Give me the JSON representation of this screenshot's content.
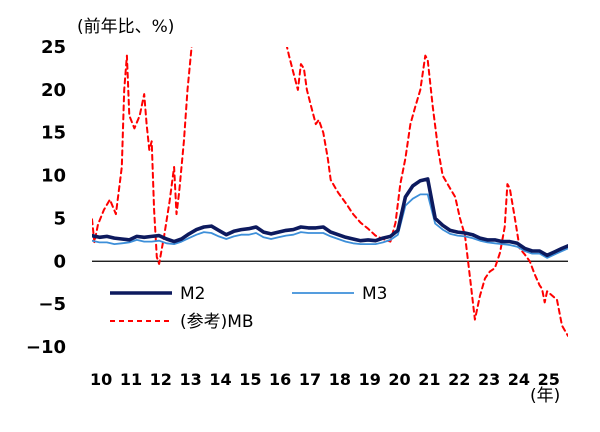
{
  "chart_data": {
    "type": "line",
    "y_unit_label": "(前年比、%)",
    "x_unit_label": "(年)",
    "ylim": [
      -10,
      25
    ],
    "y_ticks": [
      25,
      20,
      15,
      10,
      5,
      0,
      -5,
      -10
    ],
    "xlim": [
      2010.0,
      2025.95
    ],
    "x_tick_labels": [
      "10",
      "11",
      "12",
      "13",
      "14",
      "15",
      "16",
      "17",
      "18",
      "19",
      "20",
      "21",
      "22",
      "23",
      "24",
      "25"
    ],
    "grid": false,
    "legend_position": "bottom-left",
    "series": [
      {
        "name": "M2",
        "legend_label": "M2",
        "color": "#0d1a5e",
        "style": "solid",
        "width": 3.6,
        "points": [
          [
            2010.0,
            3.0
          ],
          [
            2010.25,
            2.8
          ],
          [
            2010.5,
            2.9
          ],
          [
            2010.75,
            2.7
          ],
          [
            2011.0,
            2.6
          ],
          [
            2011.25,
            2.5
          ],
          [
            2011.5,
            2.9
          ],
          [
            2011.75,
            2.8
          ],
          [
            2012.0,
            2.9
          ],
          [
            2012.25,
            3.0
          ],
          [
            2012.5,
            2.6
          ],
          [
            2012.75,
            2.3
          ],
          [
            2013.0,
            2.6
          ],
          [
            2013.25,
            3.2
          ],
          [
            2013.5,
            3.7
          ],
          [
            2013.75,
            4.0
          ],
          [
            2014.0,
            4.1
          ],
          [
            2014.25,
            3.6
          ],
          [
            2014.5,
            3.1
          ],
          [
            2014.75,
            3.5
          ],
          [
            2015.0,
            3.7
          ],
          [
            2015.25,
            3.8
          ],
          [
            2015.5,
            4.0
          ],
          [
            2015.75,
            3.4
          ],
          [
            2016.0,
            3.2
          ],
          [
            2016.25,
            3.4
          ],
          [
            2016.5,
            3.6
          ],
          [
            2016.75,
            3.7
          ],
          [
            2017.0,
            4.0
          ],
          [
            2017.25,
            3.9
          ],
          [
            2017.5,
            3.9
          ],
          [
            2017.75,
            4.0
          ],
          [
            2018.0,
            3.4
          ],
          [
            2018.25,
            3.1
          ],
          [
            2018.5,
            2.8
          ],
          [
            2018.75,
            2.6
          ],
          [
            2019.0,
            2.4
          ],
          [
            2019.25,
            2.5
          ],
          [
            2019.5,
            2.4
          ],
          [
            2019.75,
            2.7
          ],
          [
            2020.0,
            2.9
          ],
          [
            2020.25,
            3.6
          ],
          [
            2020.5,
            7.5
          ],
          [
            2020.75,
            8.8
          ],
          [
            2021.0,
            9.4
          ],
          [
            2021.25,
            9.6
          ],
          [
            2021.5,
            5.0
          ],
          [
            2021.75,
            4.2
          ],
          [
            2022.0,
            3.6
          ],
          [
            2022.25,
            3.4
          ],
          [
            2022.5,
            3.3
          ],
          [
            2022.75,
            3.1
          ],
          [
            2023.0,
            2.7
          ],
          [
            2023.25,
            2.5
          ],
          [
            2023.5,
            2.5
          ],
          [
            2023.75,
            2.3
          ],
          [
            2024.0,
            2.3
          ],
          [
            2024.25,
            2.1
          ],
          [
            2024.5,
            1.5
          ],
          [
            2024.75,
            1.2
          ],
          [
            2025.0,
            1.2
          ],
          [
            2025.25,
            0.7
          ],
          [
            2025.5,
            1.1
          ],
          [
            2025.75,
            1.5
          ],
          [
            2025.95,
            1.8
          ]
        ]
      },
      {
        "name": "M3",
        "legend_label": "M3",
        "color": "#3d8fd9",
        "style": "solid",
        "width": 1.8,
        "points": [
          [
            2010.0,
            2.4
          ],
          [
            2010.25,
            2.2
          ],
          [
            2010.5,
            2.2
          ],
          [
            2010.75,
            2.0
          ],
          [
            2011.0,
            2.1
          ],
          [
            2011.25,
            2.2
          ],
          [
            2011.5,
            2.5
          ],
          [
            2011.75,
            2.3
          ],
          [
            2012.0,
            2.3
          ],
          [
            2012.25,
            2.4
          ],
          [
            2012.5,
            2.1
          ],
          [
            2012.75,
            2.0
          ],
          [
            2013.0,
            2.3
          ],
          [
            2013.25,
            2.7
          ],
          [
            2013.5,
            3.1
          ],
          [
            2013.75,
            3.4
          ],
          [
            2014.0,
            3.3
          ],
          [
            2014.25,
            2.9
          ],
          [
            2014.5,
            2.6
          ],
          [
            2014.75,
            2.9
          ],
          [
            2015.0,
            3.1
          ],
          [
            2015.25,
            3.1
          ],
          [
            2015.5,
            3.3
          ],
          [
            2015.75,
            2.8
          ],
          [
            2016.0,
            2.6
          ],
          [
            2016.25,
            2.8
          ],
          [
            2016.5,
            3.0
          ],
          [
            2016.75,
            3.1
          ],
          [
            2017.0,
            3.4
          ],
          [
            2017.25,
            3.3
          ],
          [
            2017.5,
            3.3
          ],
          [
            2017.75,
            3.3
          ],
          [
            2018.0,
            2.9
          ],
          [
            2018.25,
            2.6
          ],
          [
            2018.5,
            2.3
          ],
          [
            2018.75,
            2.1
          ],
          [
            2019.0,
            2.0
          ],
          [
            2019.25,
            2.0
          ],
          [
            2019.5,
            2.0
          ],
          [
            2019.75,
            2.2
          ],
          [
            2020.0,
            2.5
          ],
          [
            2020.25,
            3.1
          ],
          [
            2020.5,
            6.5
          ],
          [
            2020.75,
            7.3
          ],
          [
            2021.0,
            7.8
          ],
          [
            2021.25,
            7.8
          ],
          [
            2021.5,
            4.4
          ],
          [
            2021.75,
            3.7
          ],
          [
            2022.0,
            3.2
          ],
          [
            2022.25,
            3.0
          ],
          [
            2022.5,
            2.9
          ],
          [
            2022.75,
            2.7
          ],
          [
            2023.0,
            2.4
          ],
          [
            2023.25,
            2.2
          ],
          [
            2023.5,
            2.1
          ],
          [
            2023.75,
            2.0
          ],
          [
            2024.0,
            1.9
          ],
          [
            2024.25,
            1.7
          ],
          [
            2024.5,
            1.2
          ],
          [
            2024.75,
            0.9
          ],
          [
            2025.0,
            0.9
          ],
          [
            2025.25,
            0.4
          ],
          [
            2025.5,
            0.8
          ],
          [
            2025.75,
            1.2
          ],
          [
            2025.95,
            1.5
          ]
        ]
      },
      {
        "name": "(参考)MB",
        "legend_label": "(参考)MB",
        "color": "#ff0000",
        "style": "dashed",
        "width": 2.0,
        "points": [
          [
            2010.0,
            4.9
          ],
          [
            2010.08,
            2.2
          ],
          [
            2010.2,
            4.3
          ],
          [
            2010.4,
            6.0
          ],
          [
            2010.6,
            7.2
          ],
          [
            2010.8,
            5.5
          ],
          [
            2011.0,
            11.0
          ],
          [
            2011.08,
            20.0
          ],
          [
            2011.17,
            24.0
          ],
          [
            2011.25,
            17.0
          ],
          [
            2011.42,
            15.5
          ],
          [
            2011.6,
            17.0
          ],
          [
            2011.75,
            19.5
          ],
          [
            2011.83,
            16.0
          ],
          [
            2011.92,
            13.0
          ],
          [
            2012.0,
            14.0
          ],
          [
            2012.08,
            6.0
          ],
          [
            2012.17,
            0.5
          ],
          [
            2012.25,
            -0.3
          ],
          [
            2012.42,
            3.0
          ],
          [
            2012.6,
            7.0
          ],
          [
            2012.75,
            11.0
          ],
          [
            2012.83,
            5.5
          ],
          [
            2012.92,
            8.0
          ],
          [
            2013.0,
            11.0
          ],
          [
            2013.08,
            14.0
          ],
          [
            2013.2,
            20.0
          ],
          [
            2013.35,
            25.5
          ],
          [
            2016.5,
            25.5
          ],
          [
            2016.6,
            24.0
          ],
          [
            2016.75,
            22.0
          ],
          [
            2016.9,
            20.0
          ],
          [
            2017.0,
            23.0
          ],
          [
            2017.1,
            22.5
          ],
          [
            2017.2,
            20.0
          ],
          [
            2017.35,
            18.0
          ],
          [
            2017.5,
            16.0
          ],
          [
            2017.6,
            16.5
          ],
          [
            2017.75,
            15.0
          ],
          [
            2017.9,
            12.0
          ],
          [
            2018.0,
            9.5
          ],
          [
            2018.25,
            8.0
          ],
          [
            2018.5,
            6.8
          ],
          [
            2018.75,
            5.5
          ],
          [
            2019.0,
            4.5
          ],
          [
            2019.25,
            3.8
          ],
          [
            2019.5,
            3.0
          ],
          [
            2019.75,
            2.6
          ],
          [
            2020.0,
            2.3
          ],
          [
            2020.17,
            4.5
          ],
          [
            2020.33,
            9.0
          ],
          [
            2020.5,
            12.0
          ],
          [
            2020.67,
            16.0
          ],
          [
            2020.83,
            18.0
          ],
          [
            2021.0,
            20.0
          ],
          [
            2021.17,
            24.0
          ],
          [
            2021.25,
            23.5
          ],
          [
            2021.42,
            18.0
          ],
          [
            2021.6,
            13.0
          ],
          [
            2021.75,
            10.0
          ],
          [
            2022.0,
            8.5
          ],
          [
            2022.17,
            7.5
          ],
          [
            2022.33,
            5.0
          ],
          [
            2022.5,
            3.0
          ],
          [
            2022.67,
            -2.0
          ],
          [
            2022.83,
            -6.8
          ],
          [
            2023.0,
            -4.0
          ],
          [
            2023.17,
            -2.0
          ],
          [
            2023.33,
            -1.2
          ],
          [
            2023.5,
            -0.8
          ],
          [
            2023.67,
            1.0
          ],
          [
            2023.83,
            4.0
          ],
          [
            2023.92,
            9.0
          ],
          [
            2024.0,
            8.5
          ],
          [
            2024.17,
            5.0
          ],
          [
            2024.33,
            1.5
          ],
          [
            2024.5,
            0.8
          ],
          [
            2024.67,
            0.0
          ],
          [
            2024.83,
            -1.5
          ],
          [
            2025.0,
            -2.8
          ],
          [
            2025.08,
            -3.2
          ],
          [
            2025.17,
            -4.8
          ],
          [
            2025.25,
            -3.5
          ],
          [
            2025.42,
            -4.0
          ],
          [
            2025.58,
            -4.5
          ],
          [
            2025.75,
            -7.5
          ],
          [
            2025.95,
            -8.7
          ]
        ]
      }
    ]
  }
}
